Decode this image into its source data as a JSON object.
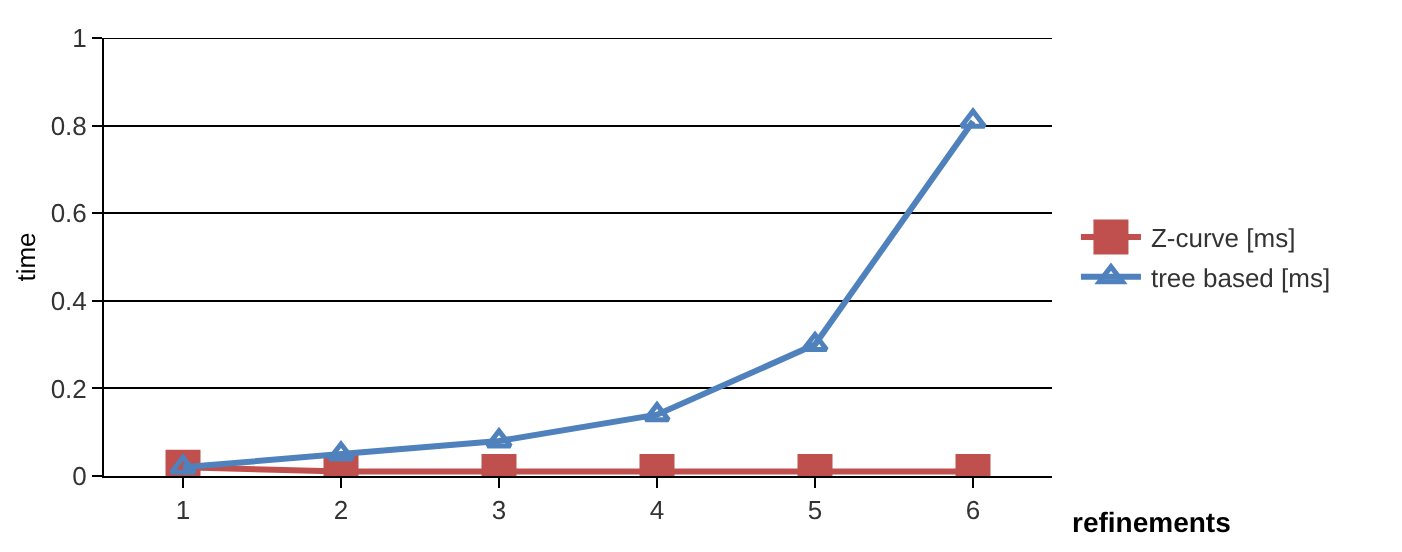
{
  "chart_data": {
    "type": "line",
    "xlabel": "refinements",
    "ylabel": "time",
    "categories": [
      "1",
      "2",
      "3",
      "4",
      "5",
      "6"
    ],
    "series": [
      {
        "name": "Z-curve [ms]",
        "color": "#c0504d",
        "marker": "square",
        "values": [
          0.02,
          0.01,
          0.01,
          0.01,
          0.01,
          0.01
        ]
      },
      {
        "name": "tree based [ms]",
        "color": "#4f81bd",
        "marker": "triangle",
        "values": [
          0.02,
          0.05,
          0.08,
          0.14,
          0.3,
          0.81
        ]
      }
    ],
    "ylim": [
      0,
      1
    ],
    "yticks": [
      0,
      0.2,
      0.4,
      0.6,
      0.8,
      1
    ],
    "grid": "y",
    "legend": "right"
  }
}
